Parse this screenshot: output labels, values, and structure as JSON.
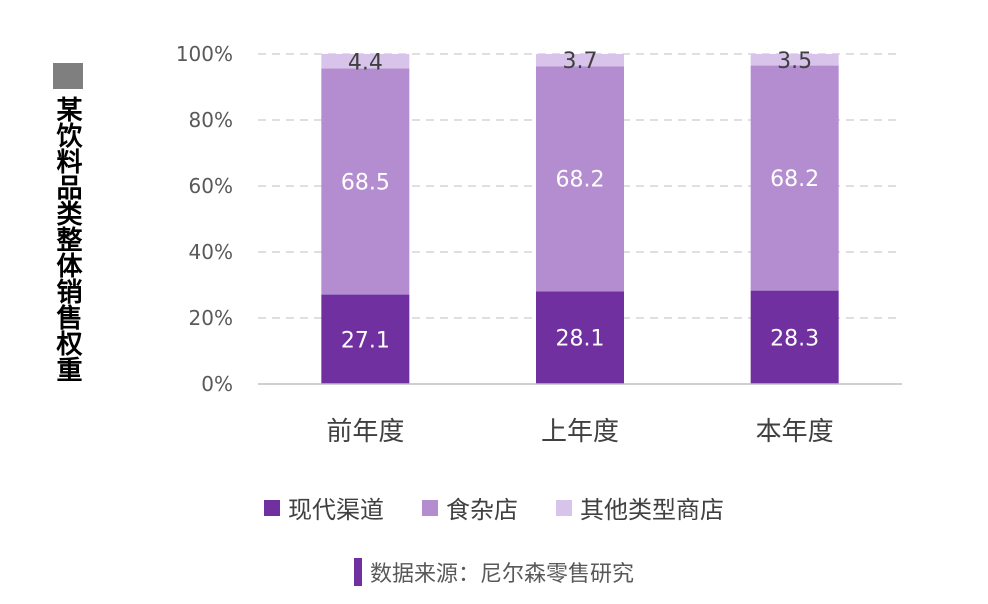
{
  "chart_data": {
    "type": "bar",
    "stacked": true,
    "ylabel": "某饮料品类整体销售权重",
    "categories": [
      "前年度",
      "上年度",
      "本年度"
    ],
    "ylim": [
      0,
      100
    ],
    "yticks": [
      "0%",
      "20%",
      "40%",
      "60%",
      "80%",
      "100%"
    ],
    "grid": true,
    "legend_position": "bottom",
    "series": [
      {
        "name": "现代渠道",
        "values": [
          27.1,
          28.1,
          28.3
        ],
        "color": "#7030a0",
        "label_color": "#ffffff"
      },
      {
        "name": "食杂店",
        "values": [
          68.5,
          68.2,
          68.2
        ],
        "color": "#b48dd1",
        "label_color": "#ffffff"
      },
      {
        "name": "其他类型商店",
        "values": [
          4.4,
          3.7,
          3.5
        ],
        "color": "#d8c4ea",
        "label_color": "#404040"
      }
    ],
    "data_labels": [
      [
        "27.1",
        "28.1",
        "28.3"
      ],
      [
        "68.5",
        "68.2",
        "68.2"
      ],
      [
        "4.4",
        "3.7",
        "3.5"
      ]
    ]
  },
  "source_text": "数据来源：尼尔森零售研究"
}
